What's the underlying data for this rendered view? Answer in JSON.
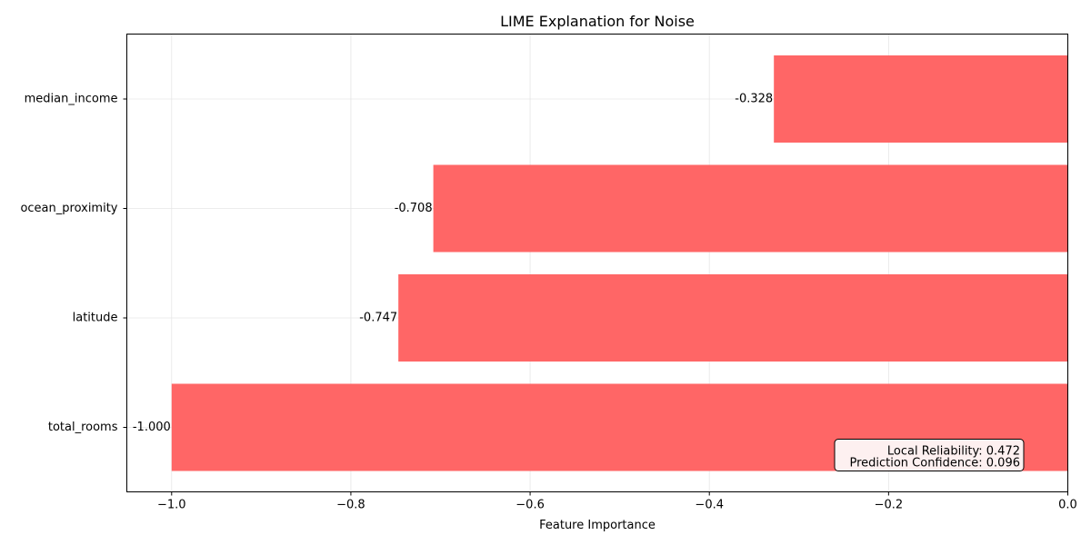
{
  "chart_data": {
    "type": "bar",
    "orientation": "horizontal",
    "title": "LIME Explanation for Noise",
    "xlabel": "Feature Importance",
    "ylabel": "",
    "categories": [
      "median_income",
      "ocean_proximity",
      "latitude",
      "total_rooms"
    ],
    "values": [
      -0.328,
      -0.708,
      -0.747,
      -1.0
    ],
    "value_labels": [
      "-0.328",
      "-0.708",
      "-0.747",
      "-1.000"
    ],
    "xlim": [
      -1.05,
      0.0
    ],
    "xticks": [
      -1.0,
      -0.8,
      -0.6,
      -0.4,
      -0.2,
      0.0
    ],
    "xtick_labels": [
      "−1.0",
      "−0.8",
      "−0.6",
      "−0.4",
      "−0.2",
      "0.0"
    ],
    "grid": true,
    "bar_color": "#ff6666",
    "annotation": {
      "lines": [
        "Local Reliability: 0.472",
        "Prediction Confidence: 0.096"
      ],
      "placement": "bottom-right",
      "background": "#fdf0f0"
    }
  }
}
